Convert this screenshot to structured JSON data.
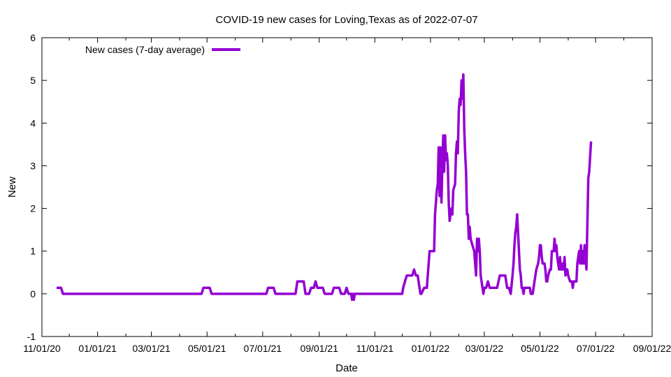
{
  "chart_data": {
    "type": "line",
    "title": "COVID-19 new cases for Loving,Texas as of 2022-07-07",
    "xlabel": "Date",
    "ylabel": "New",
    "ylim": [
      -1,
      6
    ],
    "yticks": [
      -1,
      0,
      1,
      2,
      3,
      4,
      5,
      6
    ],
    "xlim": [
      "2020-11-01",
      "2022-09-01"
    ],
    "xticks": [
      "2020-11-01",
      "2021-01-01",
      "2021-03-01",
      "2021-05-01",
      "2021-07-01",
      "2021-09-01",
      "2021-11-01",
      "2022-01-01",
      "2022-03-01",
      "2022-05-01",
      "2022-07-01",
      "2022-09-01"
    ],
    "xtick_labels": [
      "11/01/20",
      "01/01/21",
      "03/01/21",
      "05/01/21",
      "07/01/21",
      "09/01/21",
      "11/01/21",
      "01/01/22",
      "03/01/22",
      "05/01/22",
      "07/01/22",
      "09/01/22"
    ],
    "grid": false,
    "legend_position": "top-left",
    "series": [
      {
        "name": "New cases (7-day average)",
        "color": "#9400d3",
        "points": [
          [
            "2020-11-17",
            0.14
          ],
          [
            "2020-11-22",
            0.14
          ],
          [
            "2020-11-24",
            0
          ],
          [
            "2021-04-25",
            0
          ],
          [
            "2021-04-27",
            0.14
          ],
          [
            "2021-05-04",
            0.14
          ],
          [
            "2021-05-06",
            0
          ],
          [
            "2021-07-05",
            0
          ],
          [
            "2021-07-07",
            0.14
          ],
          [
            "2021-07-13",
            0.14
          ],
          [
            "2021-07-15",
            0
          ],
          [
            "2021-08-06",
            0
          ],
          [
            "2021-08-08",
            0.29
          ],
          [
            "2021-08-15",
            0.29
          ],
          [
            "2021-08-17",
            0
          ],
          [
            "2021-08-21",
            0
          ],
          [
            "2021-08-23",
            0.14
          ],
          [
            "2021-08-26",
            0.14
          ],
          [
            "2021-08-28",
            0.29
          ],
          [
            "2021-08-30",
            0.14
          ],
          [
            "2021-09-05",
            0.14
          ],
          [
            "2021-09-07",
            0
          ],
          [
            "2021-09-15",
            0
          ],
          [
            "2021-09-17",
            0.14
          ],
          [
            "2021-09-23",
            0.14
          ],
          [
            "2021-09-25",
            0
          ],
          [
            "2021-09-29",
            0
          ],
          [
            "2021-10-01",
            0.14
          ],
          [
            "2021-10-03",
            0
          ],
          [
            "2021-10-06",
            0
          ],
          [
            "2021-10-07",
            -0.14
          ],
          [
            "2021-10-08",
            0
          ],
          [
            "2021-10-09",
            -0.14
          ],
          [
            "2021-10-10",
            0
          ],
          [
            "2021-12-01",
            0
          ],
          [
            "2021-12-02",
            0.14
          ],
          [
            "2021-12-04",
            0.29
          ],
          [
            "2021-12-06",
            0.43
          ],
          [
            "2021-12-12",
            0.43
          ],
          [
            "2021-12-14",
            0.57
          ],
          [
            "2021-12-16",
            0.43
          ],
          [
            "2021-12-18",
            0.43
          ],
          [
            "2021-12-21",
            0
          ],
          [
            "2021-12-22",
            0
          ],
          [
            "2021-12-25",
            0.14
          ],
          [
            "2021-12-28",
            0.14
          ],
          [
            "2021-12-31",
            1.0
          ],
          [
            "2022-01-05",
            1.0
          ],
          [
            "2022-01-06",
            1.86
          ],
          [
            "2022-01-08",
            2.43
          ],
          [
            "2022-01-09",
            2.57
          ],
          [
            "2022-01-10",
            3.43
          ],
          [
            "2022-01-11",
            2.29
          ],
          [
            "2022-01-12",
            3.43
          ],
          [
            "2022-01-13",
            2.14
          ],
          [
            "2022-01-14",
            3.0
          ],
          [
            "2022-01-15",
            3.71
          ],
          [
            "2022-01-16",
            2.86
          ],
          [
            "2022-01-17",
            3.71
          ],
          [
            "2022-01-18",
            3.14
          ],
          [
            "2022-01-19",
            3.29
          ],
          [
            "2022-01-20",
            3.0
          ],
          [
            "2022-01-21",
            2.14
          ],
          [
            "2022-01-22",
            1.71
          ],
          [
            "2022-01-24",
            2.0
          ],
          [
            "2022-01-25",
            1.86
          ],
          [
            "2022-01-26",
            2.43
          ],
          [
            "2022-01-28",
            2.57
          ],
          [
            "2022-01-29",
            3.29
          ],
          [
            "2022-01-30",
            3.57
          ],
          [
            "2022-01-31",
            3.29
          ],
          [
            "2022-02-01",
            4.29
          ],
          [
            "2022-02-02",
            4.57
          ],
          [
            "2022-02-03",
            4.43
          ],
          [
            "2022-02-04",
            5.0
          ],
          [
            "2022-02-05",
            4.57
          ],
          [
            "2022-02-06",
            5.14
          ],
          [
            "2022-02-07",
            3.86
          ],
          [
            "2022-02-08",
            3.29
          ],
          [
            "2022-02-09",
            2.86
          ],
          [
            "2022-02-10",
            1.86
          ],
          [
            "2022-02-11",
            1.86
          ],
          [
            "2022-02-12",
            1.29
          ],
          [
            "2022-02-13",
            1.57
          ],
          [
            "2022-02-14",
            1.29
          ],
          [
            "2022-02-16",
            1.14
          ],
          [
            "2022-02-18",
            1.0
          ],
          [
            "2022-02-19",
            0.71
          ],
          [
            "2022-02-20",
            0.43
          ],
          [
            "2022-02-21",
            1.29
          ],
          [
            "2022-02-22",
            1.0
          ],
          [
            "2022-02-23",
            1.29
          ],
          [
            "2022-02-24",
            1.0
          ],
          [
            "2022-02-25",
            0.43
          ],
          [
            "2022-02-26",
            0.29
          ],
          [
            "2022-02-27",
            0.14
          ],
          [
            "2022-02-28",
            0
          ],
          [
            "2022-03-01",
            0.14
          ],
          [
            "2022-03-03",
            0.14
          ],
          [
            "2022-03-05",
            0.29
          ],
          [
            "2022-03-07",
            0.14
          ],
          [
            "2022-03-15",
            0.14
          ],
          [
            "2022-03-18",
            0.43
          ],
          [
            "2022-03-24",
            0.43
          ],
          [
            "2022-03-26",
            0.14
          ],
          [
            "2022-03-28",
            0.14
          ],
          [
            "2022-03-30",
            0
          ],
          [
            "2022-04-01",
            0.43
          ],
          [
            "2022-04-02",
            0.71
          ],
          [
            "2022-04-03",
            1.14
          ],
          [
            "2022-04-04",
            1.43
          ],
          [
            "2022-04-05",
            1.57
          ],
          [
            "2022-04-06",
            1.86
          ],
          [
            "2022-04-07",
            1.43
          ],
          [
            "2022-04-08",
            1.0
          ],
          [
            "2022-04-09",
            0.57
          ],
          [
            "2022-04-10",
            0.43
          ],
          [
            "2022-04-11",
            0.14
          ],
          [
            "2022-04-12",
            0.14
          ],
          [
            "2022-04-13",
            0
          ],
          [
            "2022-04-14",
            0.14
          ],
          [
            "2022-04-20",
            0.14
          ],
          [
            "2022-04-21",
            0
          ],
          [
            "2022-04-23",
            0
          ],
          [
            "2022-04-25",
            0.29
          ],
          [
            "2022-04-27",
            0.57
          ],
          [
            "2022-04-29",
            0.71
          ],
          [
            "2022-04-30",
            0.86
          ],
          [
            "2022-05-01",
            1.14
          ],
          [
            "2022-05-02",
            1.14
          ],
          [
            "2022-05-03",
            0.86
          ],
          [
            "2022-05-04",
            0.71
          ],
          [
            "2022-05-06",
            0.71
          ],
          [
            "2022-05-07",
            0.57
          ],
          [
            "2022-05-08",
            0.29
          ],
          [
            "2022-05-09",
            0.29
          ],
          [
            "2022-05-10",
            0.43
          ],
          [
            "2022-05-12",
            0.57
          ],
          [
            "2022-05-13",
            0.57
          ],
          [
            "2022-05-14",
            1.0
          ],
          [
            "2022-05-16",
            1.0
          ],
          [
            "2022-05-17",
            1.29
          ],
          [
            "2022-05-18",
            1.0
          ],
          [
            "2022-05-19",
            1.14
          ],
          [
            "2022-05-20",
            0.86
          ],
          [
            "2022-05-21",
            0.71
          ],
          [
            "2022-05-22",
            0.57
          ],
          [
            "2022-05-23",
            0.86
          ],
          [
            "2022-05-24",
            0.57
          ],
          [
            "2022-05-25",
            0.57
          ],
          [
            "2022-05-26",
            0.71
          ],
          [
            "2022-05-27",
            0.57
          ],
          [
            "2022-05-28",
            0.86
          ],
          [
            "2022-05-29",
            0.43
          ],
          [
            "2022-05-30",
            0.57
          ],
          [
            "2022-05-31",
            0.57
          ],
          [
            "2022-06-01",
            0.43
          ],
          [
            "2022-06-03",
            0.29
          ],
          [
            "2022-06-05",
            0.29
          ],
          [
            "2022-06-06",
            0.14
          ],
          [
            "2022-06-07",
            0.29
          ],
          [
            "2022-06-10",
            0.29
          ],
          [
            "2022-06-11",
            0.71
          ],
          [
            "2022-06-12",
            0.86
          ],
          [
            "2022-06-13",
            1.0
          ],
          [
            "2022-06-14",
            0.71
          ],
          [
            "2022-06-15",
            1.14
          ],
          [
            "2022-06-16",
            0.71
          ],
          [
            "2022-06-17",
            1.0
          ],
          [
            "2022-06-18",
            0.71
          ],
          [
            "2022-06-19",
            1.14
          ],
          [
            "2022-06-20",
            0.86
          ],
          [
            "2022-06-21",
            0.57
          ],
          [
            "2022-06-23",
            2.71
          ],
          [
            "2022-06-24",
            2.86
          ],
          [
            "2022-06-26",
            3.57
          ]
        ]
      }
    ]
  }
}
